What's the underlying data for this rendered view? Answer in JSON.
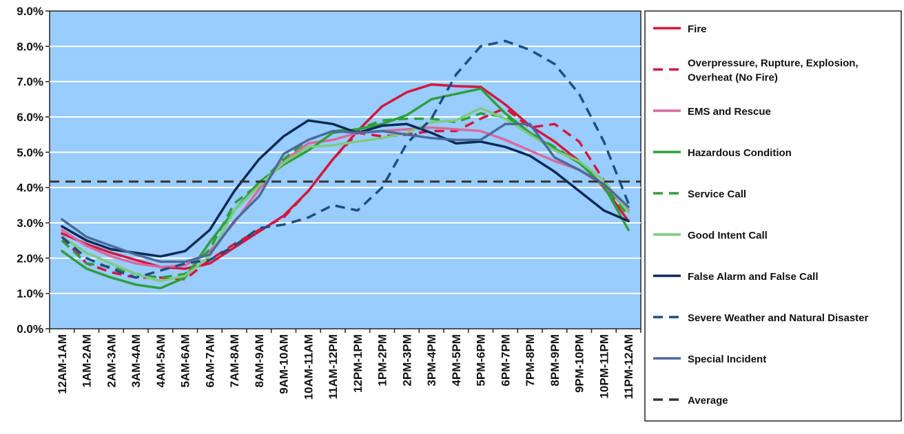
{
  "chart_data": {
    "type": "line",
    "title": "",
    "xlabel": "",
    "ylabel": "",
    "ylim": [
      0,
      9
    ],
    "yticks": [
      "0.0%",
      "1.0%",
      "2.0%",
      "3.0%",
      "4.0%",
      "5.0%",
      "6.0%",
      "7.0%",
      "8.0%",
      "9.0%"
    ],
    "grid": true,
    "legend_position": "right",
    "plot_background": "#99ccff",
    "categories": [
      "12AM-1AM",
      "1AM-2AM",
      "2AM-3AM",
      "3AM-4AM",
      "4AM-5AM",
      "5AM-6AM",
      "6AM-7AM",
      "7AM-8AM",
      "8AM-9AM",
      "9AM-10AM",
      "10AM-11AM",
      "11AM-12PM",
      "12PM-1PM",
      "1PM-2PM",
      "2PM-3PM",
      "3PM-4PM",
      "4PM-5PM",
      "5PM-6PM",
      "6PM-7PM",
      "7PM-8PM",
      "8PM-9PM",
      "9PM-10PM",
      "10PM-11PM",
      "11PM-12AM"
    ],
    "series": [
      {
        "name": "Fire",
        "color": "#d4163c",
        "dash": false,
        "values": [
          2.7,
          2.4,
          2.15,
          1.95,
          1.75,
          1.7,
          1.85,
          2.3,
          2.75,
          3.2,
          3.9,
          4.8,
          5.6,
          6.3,
          6.7,
          6.92,
          6.87,
          6.85,
          6.35,
          5.75,
          5.3,
          4.75,
          4.0,
          3.05
        ]
      },
      {
        "name": "Overpressure, Rupture, Explosion, Overheat (No Fire)",
        "color": "#d4163c",
        "dash": true,
        "values": [
          2.6,
          1.85,
          1.6,
          1.45,
          1.45,
          1.4,
          1.95,
          2.4,
          2.8,
          3.15,
          3.9,
          4.8,
          5.55,
          5.45,
          5.5,
          5.6,
          5.6,
          5.95,
          6.25,
          5.7,
          5.8,
          5.3,
          4.2,
          3.3
        ]
      },
      {
        "name": "EMS and Rescue",
        "color": "#d9699c",
        "dash": false,
        "values": [
          2.8,
          2.35,
          2.05,
          1.85,
          1.75,
          1.8,
          2.2,
          3.0,
          3.95,
          4.75,
          5.25,
          5.35,
          5.55,
          5.6,
          5.65,
          5.7,
          5.65,
          5.6,
          5.35,
          5.05,
          4.75,
          4.5,
          4.05,
          3.35
        ]
      },
      {
        "name": "Hazardous Condition",
        "color": "#2e9e3a",
        "dash": false,
        "values": [
          2.2,
          1.7,
          1.45,
          1.25,
          1.15,
          1.45,
          2.45,
          3.35,
          4.15,
          4.65,
          5.05,
          5.55,
          5.65,
          5.8,
          6.05,
          6.5,
          6.65,
          6.8,
          6.1,
          5.55,
          5.1,
          4.7,
          4.05,
          2.8
        ]
      },
      {
        "name": "Service Call",
        "color": "#2e9e3a",
        "dash": true,
        "values": [
          2.5,
          1.85,
          1.75,
          1.55,
          1.45,
          1.55,
          2.25,
          3.55,
          4.1,
          4.8,
          5.35,
          5.6,
          5.65,
          5.9,
          5.95,
          5.95,
          5.85,
          6.1,
          6.0,
          5.55,
          5.15,
          4.7,
          4.05,
          3.2
        ]
      },
      {
        "name": "Good Intent Call",
        "color": "#7ecb7e",
        "dash": false,
        "values": [
          2.6,
          2.15,
          1.85,
          1.55,
          1.35,
          1.5,
          2.05,
          3.35,
          4.05,
          4.7,
          5.15,
          5.2,
          5.3,
          5.4,
          5.55,
          5.85,
          5.9,
          6.25,
          5.95,
          5.5,
          5.05,
          4.75,
          4.2,
          3.3
        ]
      },
      {
        "name": "False Alarm and False Call",
        "color": "#0a2a55",
        "dash": false,
        "values": [
          2.9,
          2.5,
          2.25,
          2.15,
          2.05,
          2.2,
          2.8,
          3.9,
          4.8,
          5.45,
          5.9,
          5.8,
          5.55,
          5.75,
          5.8,
          5.55,
          5.25,
          5.3,
          5.15,
          4.9,
          4.45,
          3.9,
          3.35,
          3.05
        ]
      },
      {
        "name": "Severe Weather and Natural Disaster",
        "color": "#1d4d85",
        "dash": true,
        "values": [
          2.6,
          2.0,
          1.7,
          1.45,
          1.65,
          1.85,
          1.95,
          2.35,
          2.85,
          2.95,
          3.15,
          3.5,
          3.35,
          4.0,
          5.25,
          5.95,
          7.2,
          8.0,
          8.15,
          7.9,
          7.5,
          6.65,
          5.3,
          3.55
        ]
      },
      {
        "name": "Special Incident",
        "color": "#4a6b9a",
        "dash": false,
        "values": [
          3.1,
          2.6,
          2.35,
          2.1,
          1.9,
          1.9,
          2.1,
          3.05,
          3.75,
          4.95,
          5.35,
          5.6,
          5.55,
          5.6,
          5.5,
          5.4,
          5.35,
          5.35,
          5.8,
          5.8,
          4.85,
          4.5,
          4.1,
          3.45
        ]
      },
      {
        "name": "Average",
        "color": "#333333",
        "dash": true,
        "average_value": 4.17
      }
    ]
  }
}
